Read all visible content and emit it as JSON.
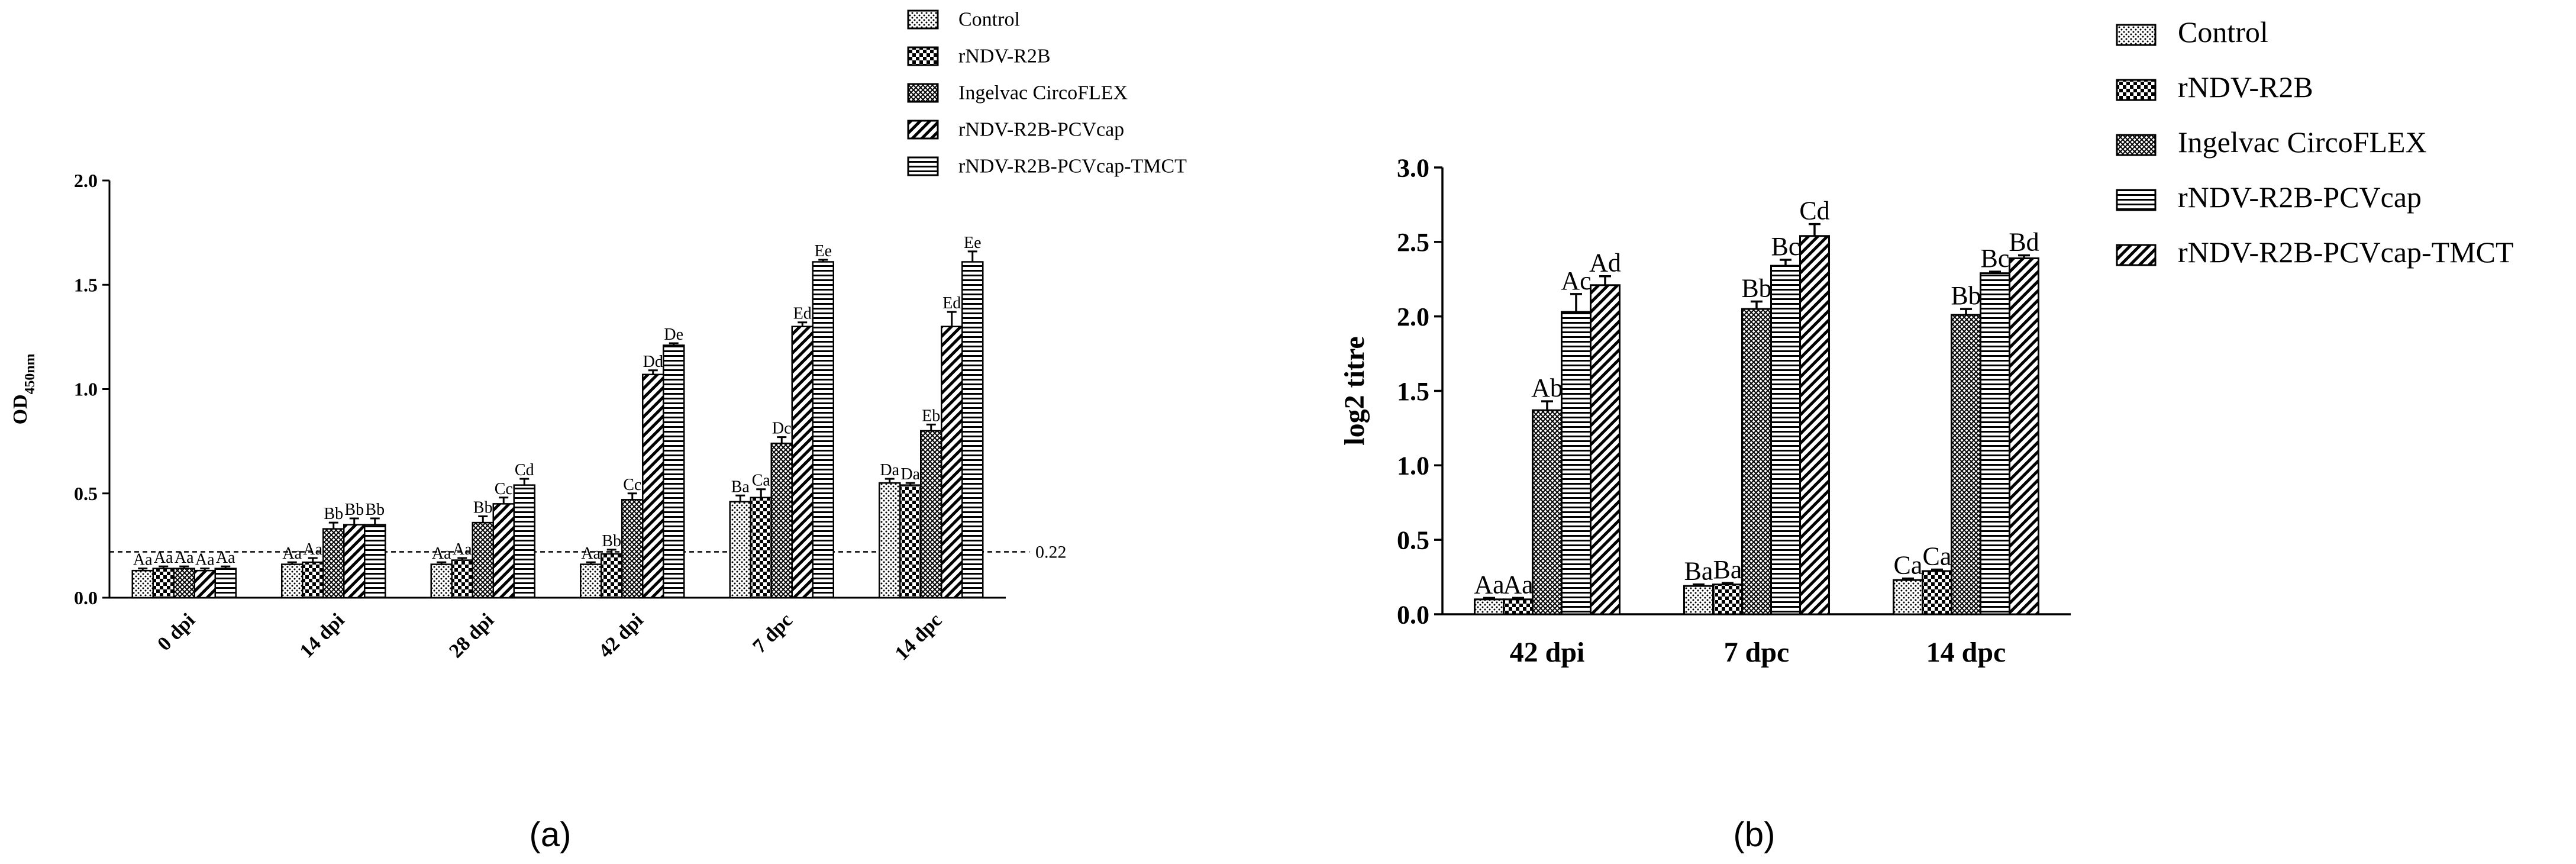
{
  "panels": [
    {
      "caption": "(a)",
      "chart_data": {
        "type": "bar",
        "title": "",
        "ylabel": "OD450nm",
        "ylabel_main": "OD",
        "ylabel_sub": "450nm",
        "xlabel": "",
        "ylim": [
          0,
          2.0
        ],
        "yticks": [
          "0.0",
          "0.5",
          "1.0",
          "1.5",
          "2.0"
        ],
        "ytick_values": [
          0,
          0.5,
          1.0,
          1.5,
          2.0
        ],
        "categories": [
          "0 dpi",
          "14 dpi",
          "28 dpi",
          "42 dpi",
          "7 dpc",
          "14 dpc"
        ],
        "legend_position": "top-right",
        "cutoff": {
          "value": 0.22,
          "label": "0.22"
        },
        "series": [
          {
            "name": "Control",
            "pattern": "dots",
            "values": [
              0.13,
              0.16,
              0.16,
              0.16,
              0.46,
              0.55
            ],
            "errors": [
              0.01,
              0.01,
              0.01,
              0.01,
              0.03,
              0.02
            ],
            "labels": [
              "Aa",
              "Aa",
              "Aa",
              "Aa",
              "Ba",
              "Da"
            ]
          },
          {
            "name": "rNDV-R2B",
            "pattern": "checker",
            "values": [
              0.14,
              0.17,
              0.18,
              0.21,
              0.48,
              0.54
            ],
            "errors": [
              0.01,
              0.02,
              0.01,
              0.02,
              0.04,
              0.01
            ],
            "labels": [
              "Aa",
              "Aa",
              "Aa",
              "Bb",
              "Ca",
              "Da"
            ]
          },
          {
            "name": "Ingelvac CircoFLEX",
            "pattern": "crosshatch",
            "values": [
              0.14,
              0.33,
              0.36,
              0.47,
              0.74,
              0.8
            ],
            "errors": [
              0.01,
              0.03,
              0.03,
              0.03,
              0.03,
              0.03
            ],
            "labels": [
              "Aa",
              "Bb",
              "Bb",
              "Cc",
              "Dc",
              "Eb"
            ]
          },
          {
            "name": "rNDV-R2B-PCVcap",
            "pattern": "diagonal",
            "values": [
              0.13,
              0.35,
              0.45,
              1.07,
              1.3,
              1.3
            ],
            "errors": [
              0.01,
              0.03,
              0.03,
              0.02,
              0.02,
              0.07
            ],
            "labels": [
              "Aa",
              "Bb",
              "Cc",
              "Dd",
              "Ed",
              "Ed"
            ]
          },
          {
            "name": "rNDV-R2B-PCVcap-TMCT",
            "pattern": "hlines",
            "values": [
              0.14,
              0.35,
              0.54,
              1.21,
              1.61,
              1.61
            ],
            "errors": [
              0.01,
              0.03,
              0.03,
              0.01,
              0.01,
              0.05
            ],
            "labels": [
              "Aa",
              "Bb",
              "Cd",
              "De",
              "Ee",
              "Ee"
            ]
          }
        ]
      }
    },
    {
      "caption": "(b)",
      "chart_data": {
        "type": "bar",
        "title": "",
        "ylabel": "log2 titre",
        "xlabel": "",
        "ylim": [
          0,
          3.0
        ],
        "yticks": [
          "0.0",
          "0.5",
          "1.0",
          "1.5",
          "2.0",
          "2.5",
          "3.0"
        ],
        "ytick_values": [
          0,
          0.5,
          1.0,
          1.5,
          2.0,
          2.5,
          3.0
        ],
        "categories": [
          "42 dpi",
          "7 dpc",
          "14 dpc"
        ],
        "legend_position": "top-right",
        "series": [
          {
            "name": "Control",
            "pattern": "dots",
            "values": [
              0.1,
              0.19,
              0.23
            ],
            "errors": [
              0.01,
              0.01,
              0.01
            ],
            "labels": [
              "Aa",
              "Ba",
              "Ca"
            ]
          },
          {
            "name": "rNDV-R2B",
            "pattern": "checker",
            "values": [
              0.1,
              0.2,
              0.29
            ],
            "errors": [
              0.01,
              0.01,
              0.01
            ],
            "labels": [
              "Aa",
              "Ba",
              "Ca"
            ]
          },
          {
            "name": "Ingelvac CircoFLEX",
            "pattern": "crosshatch",
            "values": [
              1.37,
              2.05,
              2.01
            ],
            "errors": [
              0.06,
              0.05,
              0.04
            ],
            "labels": [
              "Ab",
              "Bb",
              "Bb"
            ]
          },
          {
            "name": "rNDV-R2B-PCVcap",
            "pattern": "hlines",
            "values": [
              2.03,
              2.34,
              2.29
            ],
            "errors": [
              0.12,
              0.04,
              0.01
            ],
            "labels": [
              "Ac",
              "Bc",
              "Bc"
            ]
          },
          {
            "name": "rNDV-R2B-PCVcap-TMCT",
            "pattern": "diagonal",
            "values": [
              2.21,
              2.54,
              2.39
            ],
            "errors": [
              0.06,
              0.08,
              0.02
            ],
            "labels": [
              "Ad",
              "Cd",
              "Bd"
            ]
          }
        ]
      }
    }
  ]
}
